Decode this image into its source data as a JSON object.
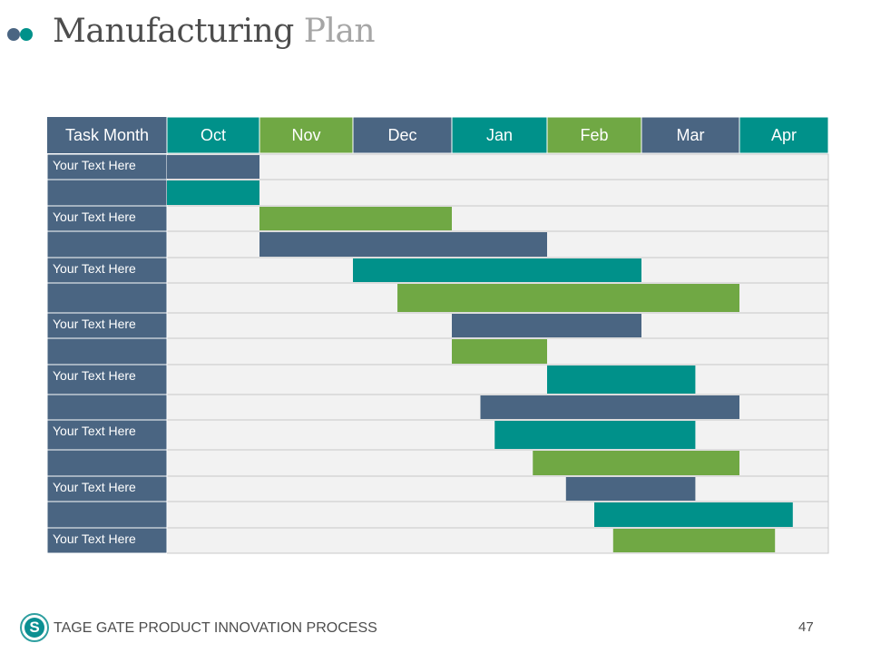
{
  "slide": {
    "title_main": "Manufacturing",
    "title_accent": "Plan",
    "footer_logo_letter": "S",
    "footer_text": "TAGE GATE PRODUCT INNOVATION PROCESS",
    "page_number": "47"
  },
  "colors": {
    "slate": "#4a6582",
    "teal": "#00918a",
    "green": "#70a844",
    "grid_bg": "#f2f2f2"
  },
  "chart_data": {
    "type": "gantt",
    "title": "Manufacturing Plan",
    "header_label": "Task Month",
    "months": [
      "Oct",
      "Nov",
      "Dec",
      "Jan",
      "Feb",
      "Mar",
      "Apr"
    ],
    "month_colors": [
      "#00918a",
      "#70a844",
      "#4a6582",
      "#00918a",
      "#70a844",
      "#4a6582",
      "#00918a"
    ],
    "x_unit": "months from start of Oct",
    "xlim": [
      0,
      7
    ],
    "tasks": [
      {
        "label": "Your Text Here",
        "start": 0.0,
        "end": 1.0,
        "color": "#4a6582"
      },
      {
        "label": "",
        "start": 0.0,
        "end": 1.0,
        "color": "#00918a"
      },
      {
        "label": "Your Text Here",
        "start": 1.0,
        "end": 3.0,
        "color": "#70a844"
      },
      {
        "label": "",
        "start": 1.0,
        "end": 4.0,
        "color": "#4a6582"
      },
      {
        "label": "Your Text Here",
        "start": 2.0,
        "end": 5.0,
        "color": "#00918a"
      },
      {
        "label": "",
        "start": 2.45,
        "end": 6.0,
        "color": "#70a844"
      },
      {
        "label": "Your Text Here",
        "start": 3.0,
        "end": 5.0,
        "color": "#4a6582"
      },
      {
        "label": "",
        "start": 3.0,
        "end": 4.0,
        "color": "#70a844"
      },
      {
        "label": "Your Text Here",
        "start": 4.0,
        "end": 5.55,
        "color": "#00918a"
      },
      {
        "label": "",
        "start": 3.3,
        "end": 6.0,
        "color": "#4a6582"
      },
      {
        "label": "Your Text Here",
        "start": 3.45,
        "end": 5.55,
        "color": "#00918a"
      },
      {
        "label": "",
        "start": 3.85,
        "end": 6.0,
        "color": "#70a844"
      },
      {
        "label": "Your Text Here",
        "start": 4.2,
        "end": 5.55,
        "color": "#4a6582"
      },
      {
        "label": "",
        "start": 4.5,
        "end": 6.6,
        "color": "#00918a"
      },
      {
        "label": "Your Text Here",
        "start": 4.7,
        "end": 6.4,
        "color": "#70a844"
      }
    ]
  }
}
